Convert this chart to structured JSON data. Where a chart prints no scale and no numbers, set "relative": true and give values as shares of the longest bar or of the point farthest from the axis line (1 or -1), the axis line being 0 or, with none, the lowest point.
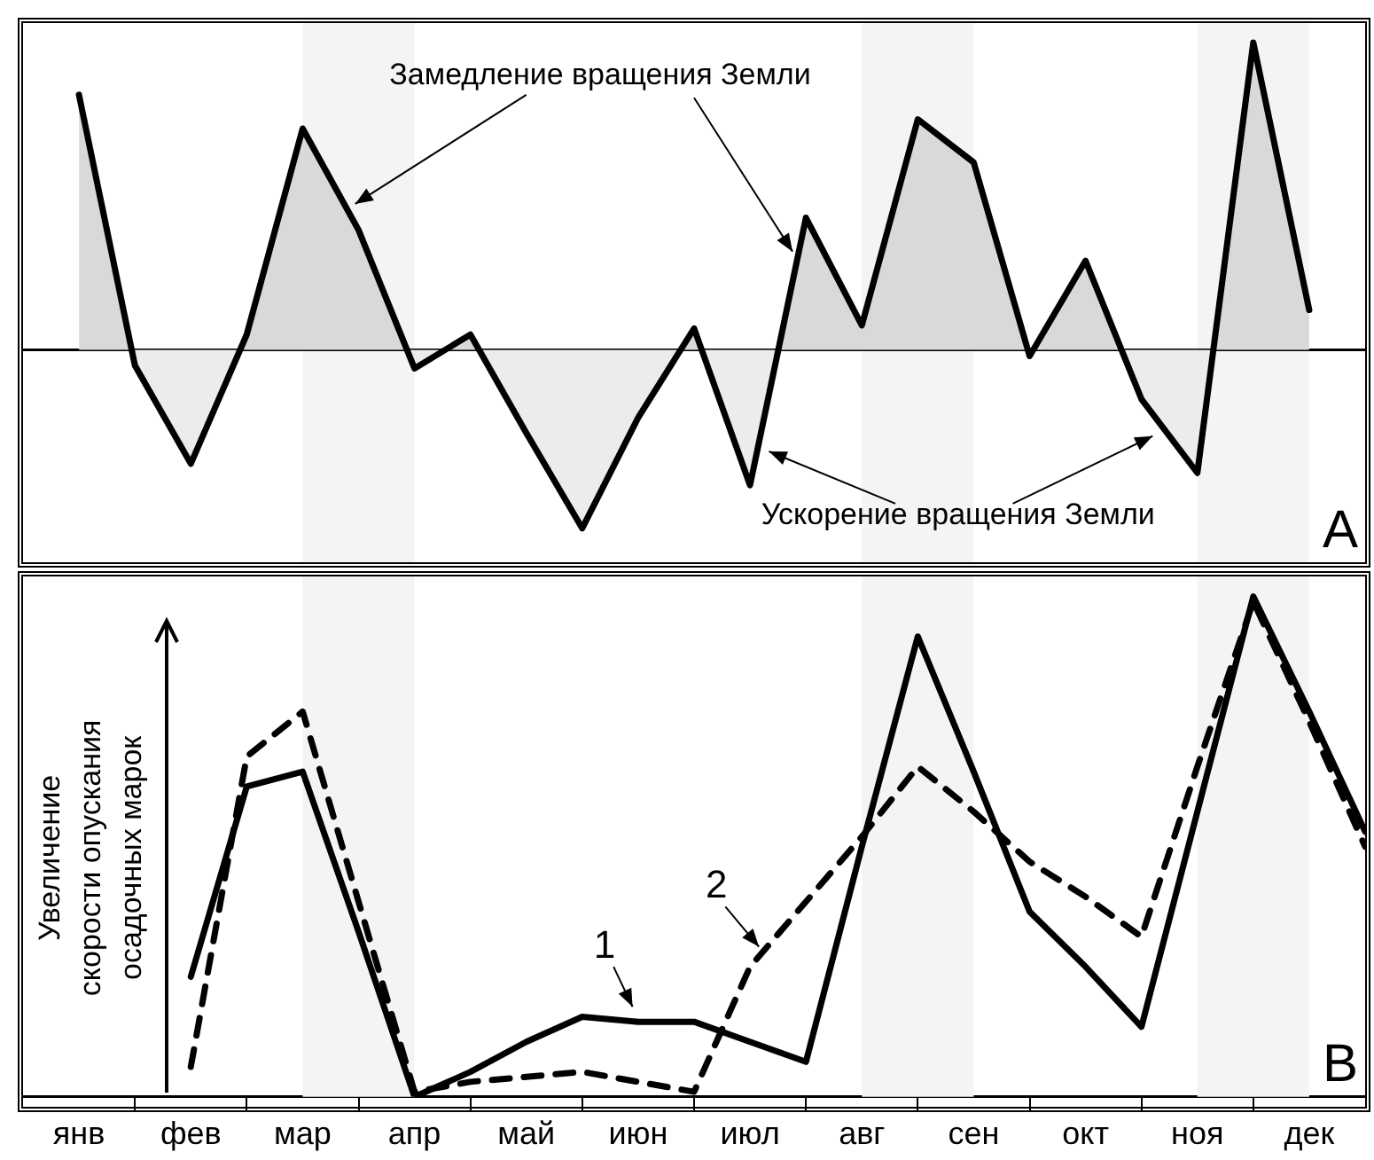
{
  "chart_data": [
    {
      "type": "area",
      "relative": true,
      "tick_labels": false,
      "color": "#000000",
      "categories": [
        "янв",
        null,
        "фев",
        null,
        "мар",
        null,
        "апр",
        null,
        "май",
        null,
        "июн",
        null,
        "июл",
        null,
        "авг",
        null,
        "сен",
        null,
        "окт",
        null,
        "ноя",
        null,
        "дек",
        null
      ],
      "bands": [
        {
          "axis": "x",
          "from": "мар",
          "to": "апр",
          "color": "#f4f4f4"
        },
        {
          "axis": "x",
          "from": "авг",
          "to": "сен",
          "color": "#f4f4f4"
        },
        {
          "axis": "x",
          "from": "ноя",
          "to": "дек",
          "color": "#f4f4f4"
        }
      ],
      "values": [
        0.83,
        -0.05,
        -0.37,
        0.05,
        0.72,
        0.39,
        -0.06,
        0.05,
        -0.27,
        -0.58,
        -0.22,
        0.07,
        -0.44,
        0.43,
        0.08,
        0.75,
        0.61,
        -0.02,
        0.29,
        -0.16,
        -0.4,
        1,
        0.13,
        null
      ],
      "annotations": [
        "Замедление вращения Земли",
        "Ускорение вращения Земли",
        "A"
      ]
    },
    {
      "type": "line",
      "relative": true,
      "ylabel": "Увеличение скорости опускания осадочных марок",
      "categories": [
        "янв",
        null,
        "фев",
        null,
        "мар",
        null,
        "апр",
        null,
        "май",
        null,
        "июн",
        null,
        "июл",
        null,
        "авг",
        null,
        "сен",
        null,
        "окт",
        null,
        "ноя",
        null,
        "дек",
        null
      ],
      "series": [
        {
          "name": "1",
          "color": "#000000",
          "line_style": "solid",
          "values": [
            null,
            null,
            0.24,
            0.62,
            0.65,
            0.33,
            0,
            0.05,
            0.11,
            0.16,
            0.15,
            0.15,
            0.11,
            0.07,
            0.5,
            0.92,
            0.65,
            0.37,
            0.26,
            0.14,
            0.57,
            1,
            0.77,
            0.53
          ]
        },
        {
          "name": "2",
          "color": "#000000",
          "line_style": "dashed",
          "values": [
            null,
            null,
            0.06,
            0.68,
            0.77,
            0.39,
            0.01,
            0.03,
            0.04,
            0.05,
            0.03,
            0.01,
            0.26,
            0.39,
            0.52,
            0.66,
            0.57,
            0.47,
            0.4,
            0.32,
            0.66,
            0.99,
            0.75,
            0.5
          ]
        }
      ],
      "bands": [
        {
          "axis": "x",
          "from": "мар",
          "to": "апр",
          "color": "#f4f4f4"
        },
        {
          "axis": "x",
          "from": "авг",
          "to": "сен",
          "color": "#f4f4f4"
        },
        {
          "axis": "x",
          "from": "ноя",
          "to": "дек",
          "color": "#f4f4f4"
        }
      ],
      "annotations": [
        "B"
      ]
    }
  ]
}
